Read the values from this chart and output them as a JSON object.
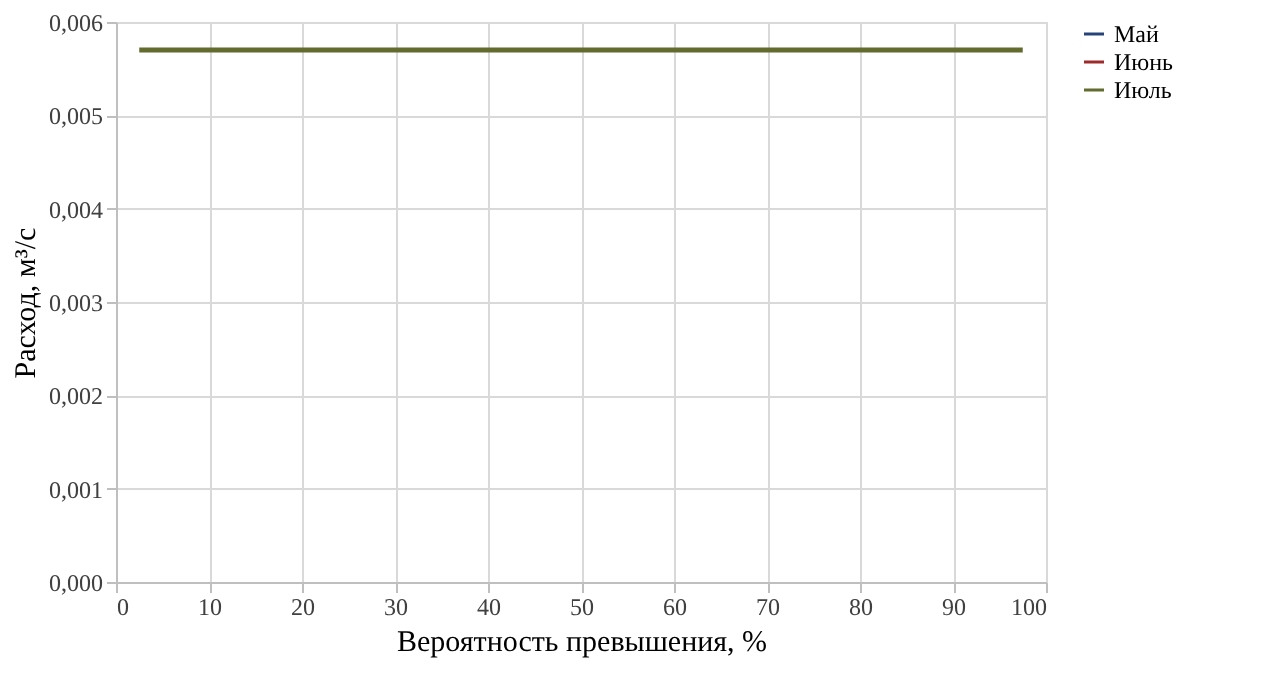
{
  "chart_data": {
    "type": "line",
    "xlabel": "Вероятность превышения, %",
    "ylabel": "Расход, м³/с",
    "x": [
      2.5,
      97.5
    ],
    "series": [
      {
        "name": "Май",
        "color": "#264478",
        "values": [
          null,
          null
        ]
      },
      {
        "name": "Июнь",
        "color": "#9e2a2b",
        "values": [
          null,
          null
        ]
      },
      {
        "name": "Июль",
        "color": "#636b2f",
        "values": [
          0.0057,
          0.0057
        ]
      }
    ],
    "xlim": [
      0,
      100
    ],
    "xticks": [
      0,
      10,
      20,
      30,
      40,
      50,
      60,
      70,
      80,
      90,
      100
    ],
    "ylim": [
      0,
      0.006
    ],
    "yticks": [
      {
        "value": 0,
        "label": "0,000"
      },
      {
        "value": 0.001,
        "label": "0,001"
      },
      {
        "value": 0.002,
        "label": "0,002"
      },
      {
        "value": 0.003,
        "label": "0,003"
      },
      {
        "value": 0.004,
        "label": "0,004"
      },
      {
        "value": 0.005,
        "label": "0,005"
      },
      {
        "value": 0.006,
        "label": "0,006"
      }
    ],
    "grid": true,
    "legend": "right",
    "marker": "none",
    "line_style": "solid"
  }
}
